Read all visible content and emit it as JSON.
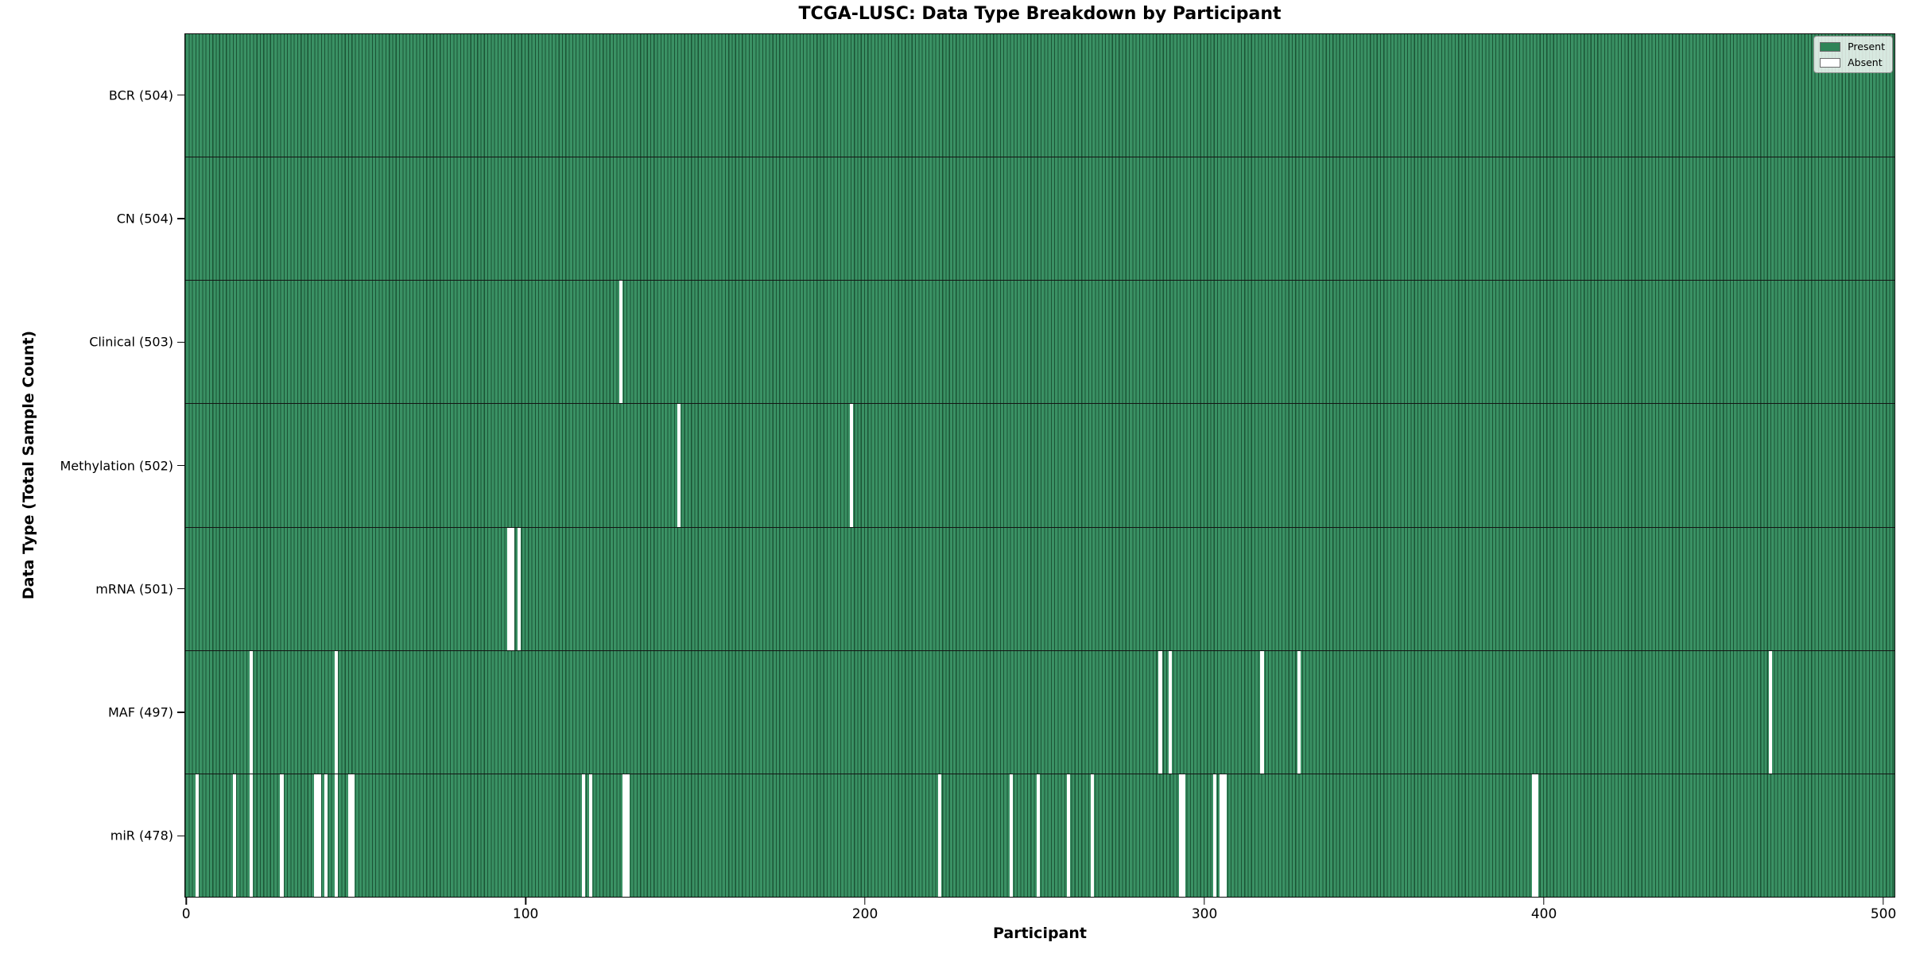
{
  "chart_data": {
    "type": "heatmap",
    "title": "TCGA-LUSC: Data Type Breakdown by Participant",
    "xlabel": "Participant",
    "ylabel": "Data Type (Total Sample Count)",
    "x_ticks": [
      0,
      100,
      200,
      300,
      400,
      500
    ],
    "xlim": [
      -0.5,
      503.5
    ],
    "n_participants": 504,
    "grid": false,
    "legend_position": "upper right",
    "legend": [
      {
        "label": "Present",
        "color": "#2e8457"
      },
      {
        "label": "Absent",
        "color": "#ffffff"
      }
    ],
    "colors": {
      "present_fill": "#3a9164",
      "present_edge": "#1b5435",
      "absent": "#ffffff",
      "row_divider": "#141414",
      "spine": "#0a0a0a"
    },
    "rows": [
      {
        "name": "BCR",
        "label": "BCR (504)",
        "total": 504,
        "absent": []
      },
      {
        "name": "CN",
        "label": "CN (504)",
        "total": 504,
        "absent": []
      },
      {
        "name": "Clinical",
        "label": "Clinical (503)",
        "total": 503,
        "absent": [
          128
        ]
      },
      {
        "name": "Methylation",
        "label": "Methylation (502)",
        "total": 502,
        "absent": [
          145,
          196
        ]
      },
      {
        "name": "mRNA",
        "label": "mRNA (501)",
        "total": 501,
        "absent": [
          95,
          96,
          98
        ]
      },
      {
        "name": "MAF",
        "label": "MAF (497)",
        "total": 497,
        "absent": [
          19,
          44,
          287,
          290,
          317,
          328,
          467
        ]
      },
      {
        "name": "miR",
        "label": "miR (478)",
        "total": 478,
        "absent": [
          3,
          14,
          19,
          28,
          38,
          39,
          41,
          44,
          48,
          49,
          117,
          119,
          129,
          130,
          222,
          243,
          251,
          260,
          267,
          293,
          294,
          303,
          305,
          306,
          397,
          398
        ]
      }
    ]
  }
}
